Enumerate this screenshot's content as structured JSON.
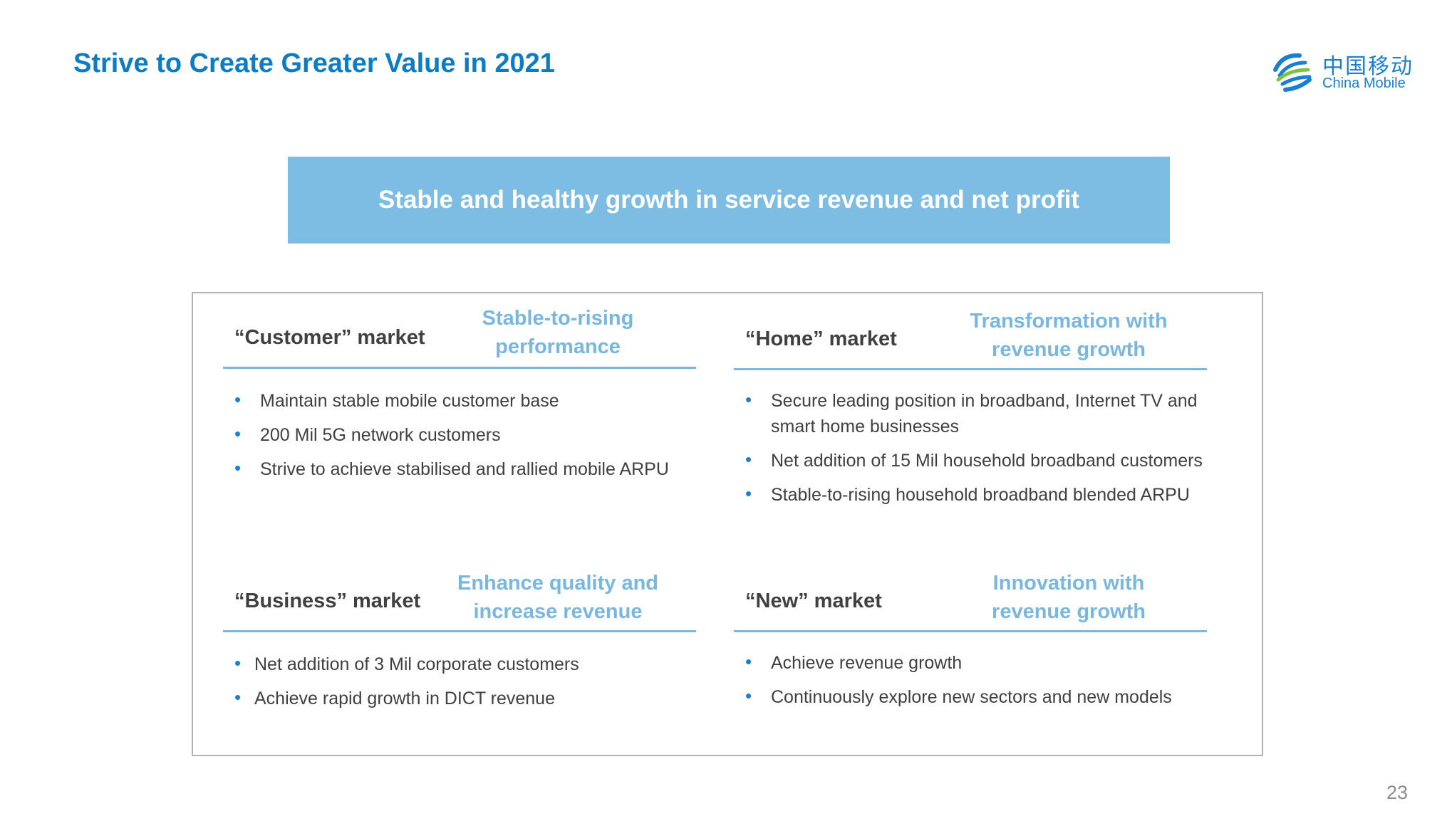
{
  "title": "Strive to Create Greater Value in 2021",
  "logo": {
    "cn": "中国移动",
    "en": "China Mobile"
  },
  "banner": "Stable and healthy growth in service revenue and net profit",
  "sections": [
    {
      "market": "“Customer” market",
      "tagline": "Stable-to-rising performance",
      "bullets": [
        "Maintain stable mobile customer base",
        "200 Mil 5G network customers",
        "Strive to achieve stabilised and rallied mobile ARPU"
      ]
    },
    {
      "market": "“Home” market",
      "tagline": "Transformation with revenue growth",
      "bullets": [
        "Secure leading position in broadband, Internet TV and smart home businesses",
        "Net addition of 15 Mil household broadband customers",
        "Stable-to-rising household broadband blended ARPU"
      ]
    },
    {
      "market": "“Business” market",
      "tagline": "Enhance quality and increase revenue",
      "bullets": [
        "Net addition of 3 Mil corporate customers",
        "Achieve rapid growth in DICT revenue"
      ]
    },
    {
      "market": "“New” market",
      "tagline": "Innovation with revenue growth",
      "bullets": [
        "Achieve revenue growth",
        "Continuously explore new sectors and new models"
      ]
    }
  ],
  "page_number": "23"
}
